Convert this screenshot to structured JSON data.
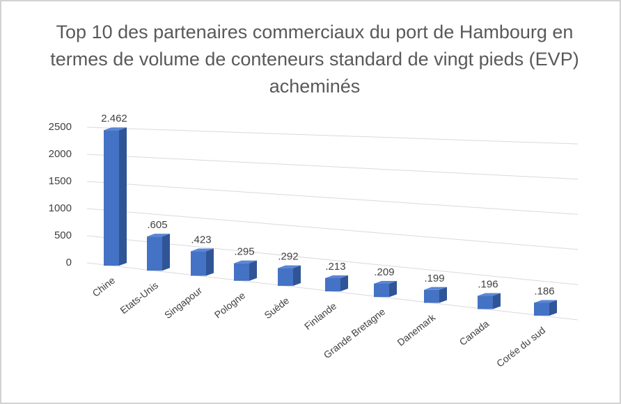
{
  "chart_data": {
    "type": "bar3d",
    "title": [
      "Top 10 des partenaires commerciaux du port de Hambourg en",
      "termes de volume de conteneurs standard de vingt pieds (EVP)",
      "acheminés"
    ],
    "categories": [
      "Chine",
      "Etats-Unis",
      "Singapour",
      "Pologne",
      "Suède",
      "Finlande",
      "Grande Bretagne",
      "Danemark",
      "Canada",
      "Corée du sud"
    ],
    "values": [
      2462,
      605,
      423,
      295,
      292,
      213,
      209,
      199,
      196,
      186
    ],
    "value_labels": [
      "2.462",
      ".605",
      ".423",
      ".295",
      ".292",
      ".213",
      ".209",
      ".199",
      ".196",
      ".186"
    ],
    "color": "#4472c4",
    "ylim": [
      0,
      2500
    ],
    "yticks": [
      0,
      500,
      1000,
      1500,
      2000,
      2500
    ],
    "grid": true
  }
}
